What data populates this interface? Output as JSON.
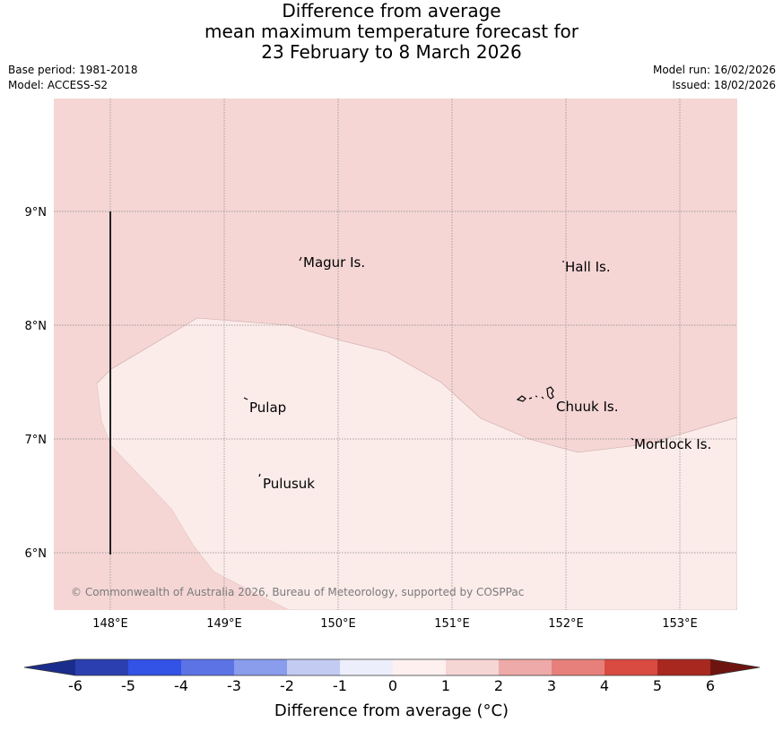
{
  "header": {
    "title_lines": [
      "Difference from average",
      "mean maximum temperature forecast for",
      "23 February to 8 March 2026"
    ],
    "base_period": "Base period: 1981-2018",
    "model": "Model: ACCESS-S2",
    "model_run": "Model run: 16/02/2026",
    "issued": "Issued: 18/02/2026"
  },
  "map": {
    "lon_ticks": [
      "148°E",
      "149°E",
      "150°E",
      "151°E",
      "152°E",
      "153°E"
    ],
    "lat_ticks": [
      "9°N",
      "8°N",
      "7°N",
      "6°N"
    ],
    "places": [
      "Magur Is.",
      "Hall Is.",
      "Pulap",
      "Chuuk Is.",
      "Mortlock Is.",
      "Pulusuk"
    ],
    "copyright": "© Commonwealth of Australia 2026, Bureau of Meteorology, supported by COSPPac",
    "colors": {
      "band_1_2": "#f5d6d5",
      "band_0_1": "#fbecea",
      "grid": "#888888"
    }
  },
  "colorbar": {
    "ticks": [
      "-6",
      "-5",
      "-4",
      "-3",
      "-2",
      "-1",
      "0",
      "1",
      "2",
      "3",
      "4",
      "5",
      "6"
    ],
    "colors": [
      "#1a2d8c",
      "#2c3fb0",
      "#3352e6",
      "#5c73e6",
      "#8a9cec",
      "#c3cbf3",
      "#eceffb",
      "#fdf0ef",
      "#f5d6d5",
      "#eeaaa8",
      "#e7807b",
      "#d94a40",
      "#a8281f",
      "#6e1410"
    ],
    "label": "Difference from average (°C)"
  }
}
